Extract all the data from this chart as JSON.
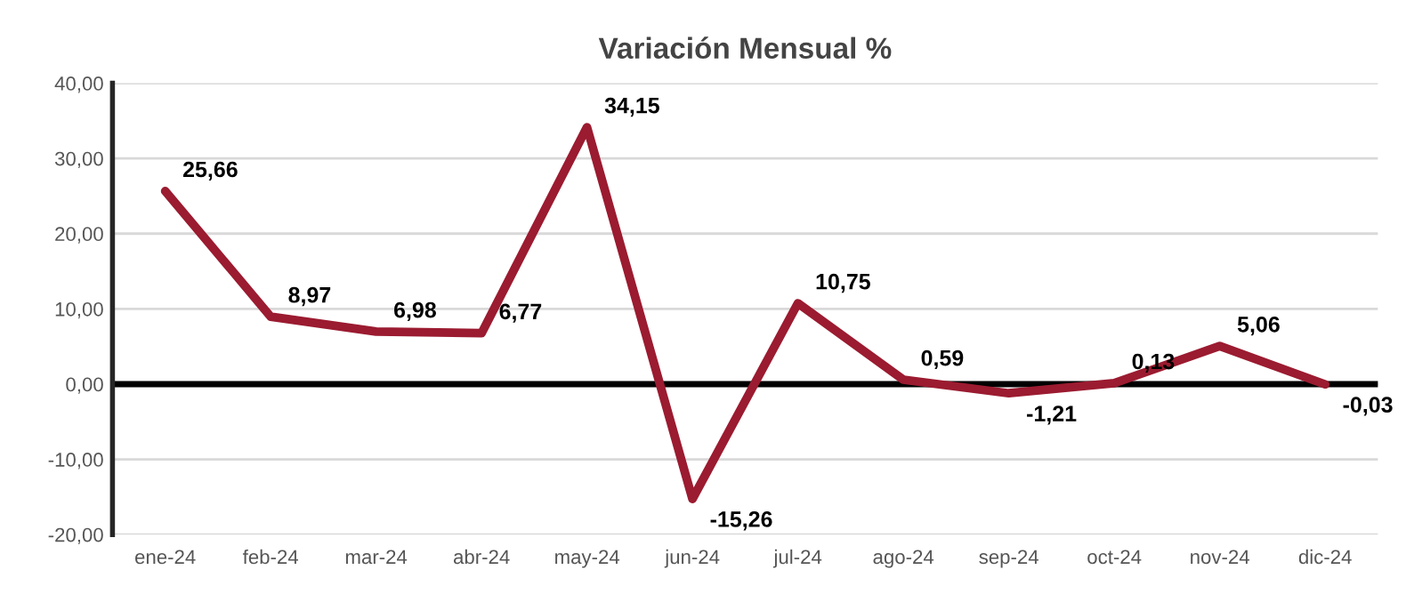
{
  "chart_data": {
    "type": "line",
    "title": "Variación Mensual %",
    "categories": [
      "ene-24",
      "feb-24",
      "mar-24",
      "abr-24",
      "may-24",
      "jun-24",
      "jul-24",
      "ago-24",
      "sep-24",
      "oct-24",
      "nov-24",
      "dic-24"
    ],
    "series": [
      {
        "color": "#9b1b30",
        "values": [
          25.66,
          8.97,
          6.98,
          6.77,
          34.15,
          -15.26,
          10.75,
          0.59,
          -1.21,
          0.13,
          5.06,
          -0.03
        ],
        "value_labels": [
          "25,66",
          "8,97",
          "6,98",
          "6,77",
          "34,15",
          "-15,26",
          "10,75",
          "0,59",
          "-1,21",
          "0,13",
          "5,06",
          "-0,03"
        ]
      }
    ],
    "ylim": [
      -20,
      40
    ],
    "yticks": [
      {
        "value": -20,
        "label": "-20,00"
      },
      {
        "value": -10,
        "label": "-10,00"
      },
      {
        "value": 0,
        "label": "0,00"
      },
      {
        "value": 10,
        "label": "10,00"
      },
      {
        "value": 20,
        "label": "20,00"
      },
      {
        "value": 30,
        "label": "30,00"
      },
      {
        "value": 40,
        "label": "40,00"
      }
    ],
    "ref_lines": [
      {
        "axis": "y",
        "value": 0,
        "color": "#000000"
      }
    ],
    "grid": "y",
    "legend": false,
    "marker": "none",
    "line_style": "solid"
  }
}
